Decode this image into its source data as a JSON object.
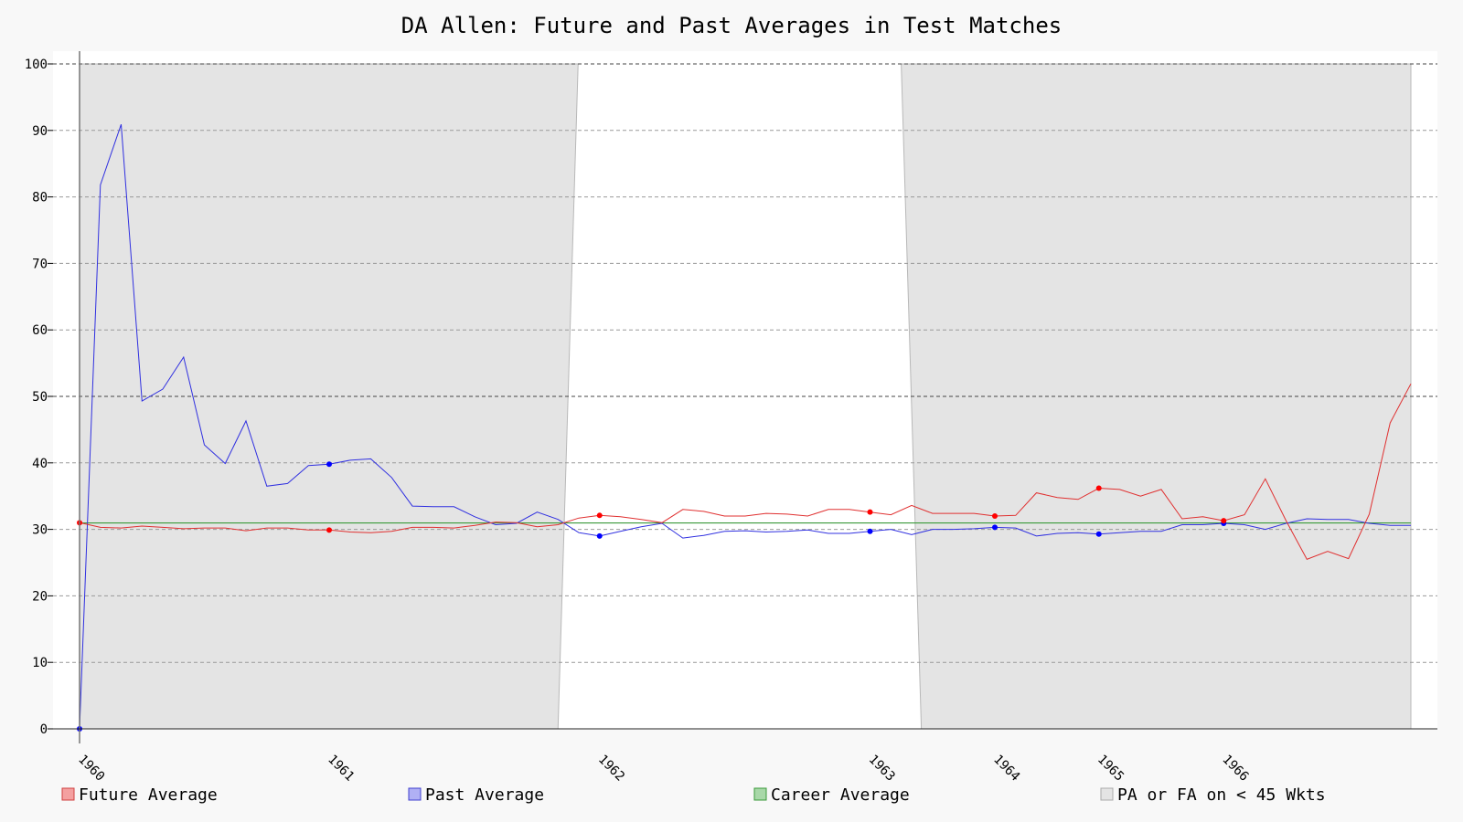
{
  "chart_data": {
    "type": "line",
    "title": "DA Allen: Future and Past Averages in Test Matches",
    "xlabel": "",
    "ylabel": "",
    "ylim": [
      0,
      100
    ],
    "y_ticks": [
      0,
      10,
      20,
      30,
      40,
      50,
      60,
      70,
      80,
      90,
      100
    ],
    "x_tick_labels": [
      "1960",
      "1961",
      "1962",
      "1963",
      "1964",
      "1965",
      "1966"
    ],
    "x_tick_match_index": [
      0,
      12,
      25,
      38,
      44,
      49,
      55
    ],
    "grid": "horizontal dashed",
    "legend_position": "bottom",
    "series": [
      {
        "name": "Future Average",
        "color": "#e03030",
        "values": [
          31.0,
          30.3,
          30.2,
          30.5,
          30.3,
          30.1,
          30.2,
          30.2,
          29.8,
          30.2,
          30.2,
          29.9,
          29.9,
          29.6,
          29.5,
          29.7,
          30.3,
          30.3,
          30.2,
          30.6,
          31.1,
          31.0,
          30.4,
          30.7,
          31.7,
          32.1,
          31.9,
          31.5,
          31.0,
          33.0,
          32.7,
          32.0,
          32.0,
          32.4,
          32.3,
          32.0,
          33.0,
          33.0,
          32.6,
          32.2,
          33.6,
          32.4,
          32.4,
          32.4,
          32.0,
          32.1,
          35.5,
          34.8,
          34.5,
          36.2,
          36.0,
          35.0,
          36.0,
          31.6,
          31.9,
          31.3,
          32.2,
          37.6,
          31.3,
          25.5,
          26.7,
          25.6,
          32.3,
          46.0,
          51.9
        ],
        "markers_at": [
          0,
          12,
          25,
          38,
          44,
          49,
          55
        ]
      },
      {
        "name": "Past Average",
        "color": "#3030e0",
        "values": [
          0.0,
          81.8,
          90.9,
          49.3,
          51.1,
          55.9,
          42.7,
          39.9,
          46.3,
          36.5,
          36.9,
          39.6,
          39.8,
          40.4,
          40.6,
          37.8,
          33.5,
          33.4,
          33.4,
          31.9,
          30.7,
          30.9,
          32.6,
          31.5,
          29.5,
          29.0,
          29.7,
          30.4,
          30.9,
          28.7,
          29.1,
          29.7,
          29.8,
          29.6,
          29.7,
          29.9,
          29.4,
          29.4,
          29.7,
          30.0,
          29.2,
          30.0,
          30.0,
          30.1,
          30.3,
          30.2,
          29.0,
          29.4,
          29.5,
          29.3,
          29.5,
          29.7,
          29.7,
          30.7,
          30.7,
          30.9,
          30.7,
          30.0,
          30.9,
          31.6,
          31.5,
          31.5,
          30.9,
          30.6,
          30.6
        ],
        "markers_at": [
          0,
          12,
          25,
          38,
          44,
          49,
          55
        ]
      },
      {
        "name": "Career Average",
        "color": "#3a9a3a",
        "value": 30.97
      }
    ],
    "shaded": {
      "name": "PA or FA on < 45 Wkts",
      "color": "#e4e4e4",
      "regions_by_match_index": [
        [
          0,
          23
        ],
        [
          39.5,
          64
        ]
      ]
    }
  }
}
